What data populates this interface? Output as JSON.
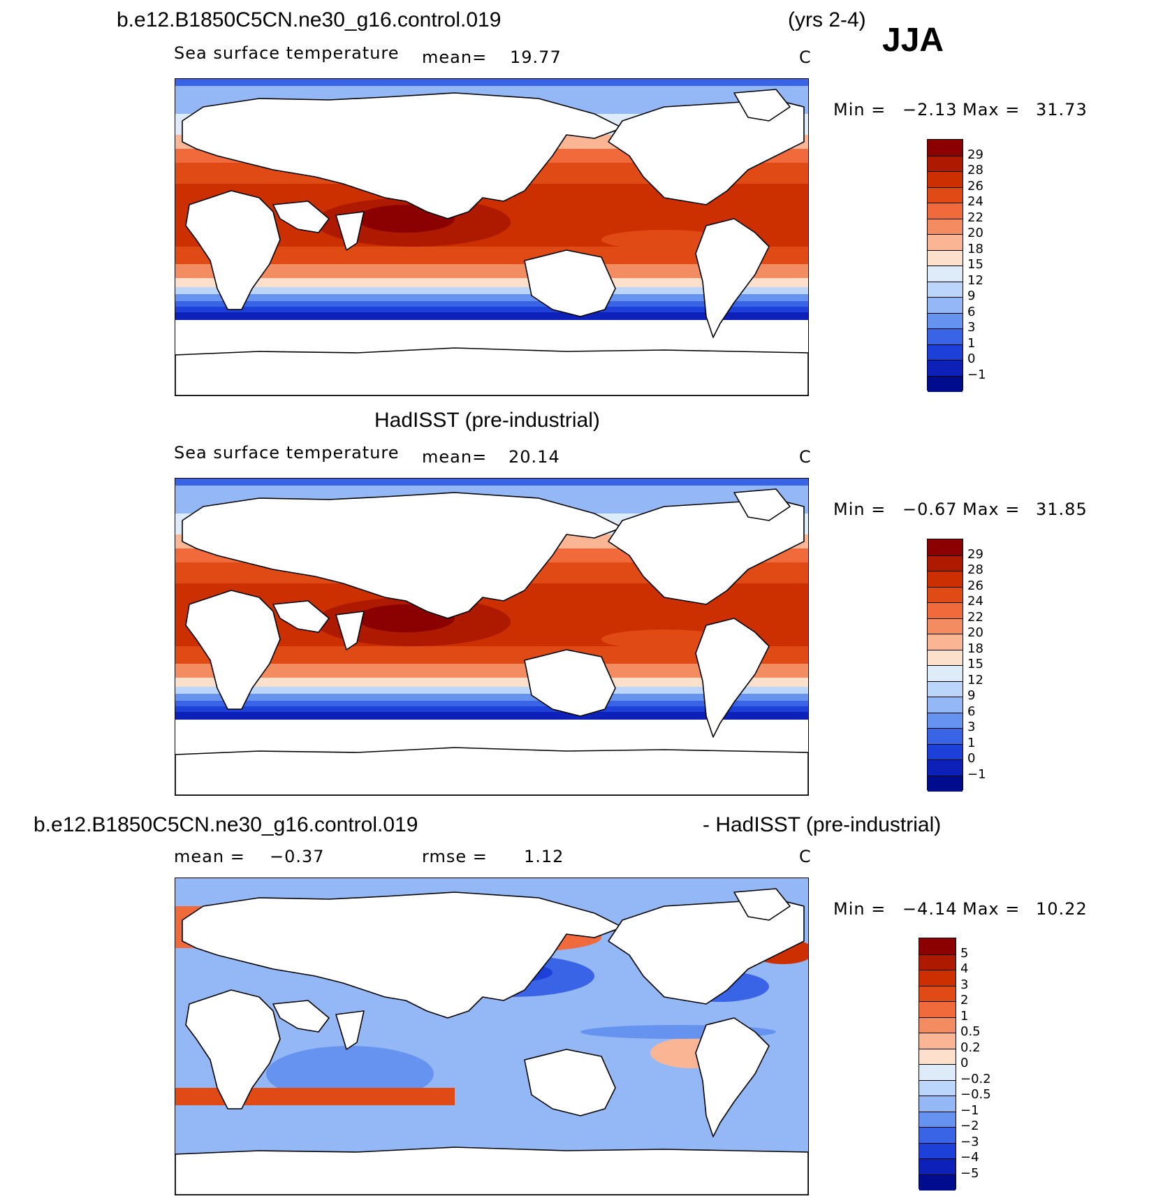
{
  "season": "JJA",
  "years": "(yrs 2-4)",
  "panels": [
    {
      "title": "b.e12.B1850C5CN.ne30_g16.control.019",
      "variable": "Sea surface temperature",
      "stat_text": "mean=",
      "mean": "19.77",
      "unit": "C",
      "min_label": "Min =",
      "min": "−2.13",
      "max_label": "Max =",
      "max": "31.73",
      "colorbar": [
        "29",
        "28",
        "26",
        "24",
        "22",
        "20",
        "18",
        "15",
        "12",
        "9",
        "6",
        "3",
        "1",
        "0",
        "−1"
      ]
    },
    {
      "title": "HadISST (pre-industrial)",
      "variable": "Sea surface temperature",
      "stat_text": "mean=",
      "mean": "20.14",
      "unit": "C",
      "min_label": "Min =",
      "min": "−0.67",
      "max_label": "Max =",
      "max": "31.85",
      "colorbar": [
        "29",
        "28",
        "26",
        "24",
        "22",
        "20",
        "18",
        "15",
        "12",
        "9",
        "6",
        "3",
        "1",
        "0",
        "−1"
      ]
    },
    {
      "title_left": "b.e12.B1850C5CN.ne30_g16.control.019",
      "title_right": "- HadISST (pre-industrial)",
      "stat_text": "mean =",
      "mean": "−0.37",
      "rmse_text": "rmse =",
      "rmse": "1.12",
      "unit": "C",
      "min_label": "Min =",
      "min": "−4.14",
      "max_label": "Max =",
      "max": "10.22",
      "colorbar": [
        "5",
        "4",
        "3",
        "2",
        "1",
        "0.5",
        "0.2",
        "0",
        "−0.2",
        "−0.5",
        "−1",
        "−2",
        "−3",
        "−4",
        "−5"
      ]
    }
  ],
  "colors": {
    "sst_scale": [
      "#8b0000",
      "#ad1a00",
      "#cc3000",
      "#e04a14",
      "#f06a3c",
      "#f48c62",
      "#f9b594",
      "#fde0cc",
      "#deecfa",
      "#bcd6fb",
      "#94b8f6",
      "#6692f0",
      "#3a64e6",
      "#1c40d8",
      "#0d20b8",
      "#000c8e"
    ],
    "diff_scale": [
      "#8b0000",
      "#ad1a00",
      "#cc3000",
      "#e04a14",
      "#f06a3c",
      "#f48c62",
      "#f9b594",
      "#fde0cc",
      "#deecfa",
      "#bcd6fb",
      "#94b8f6",
      "#6692f0",
      "#3a64e6",
      "#1c40d8",
      "#0d20b8",
      "#000c8e"
    ]
  }
}
